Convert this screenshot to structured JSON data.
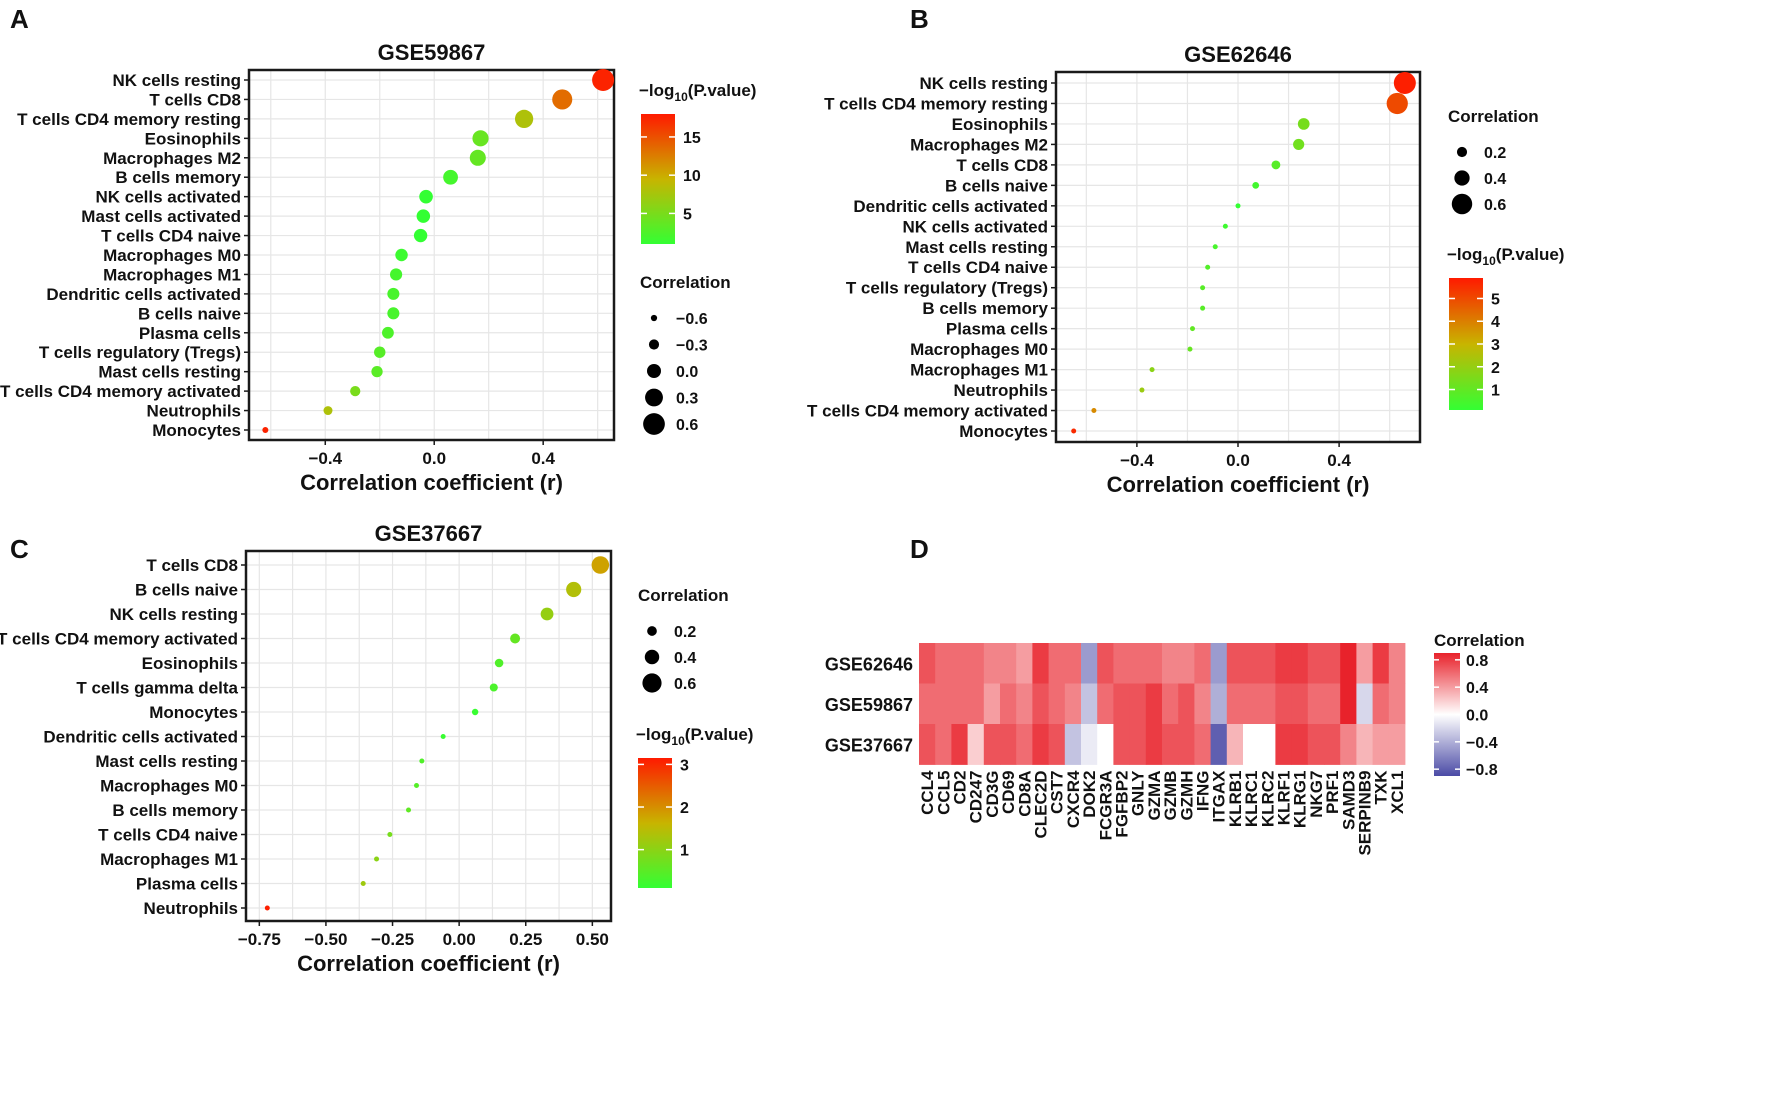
{
  "chart_data": [
    {
      "panel": "A",
      "type": "scatter",
      "title": "GSE59867",
      "xlabel": "Correlation coefficient (r)",
      "xlim": [
        -0.68,
        0.66
      ],
      "xticks": [
        -0.4,
        0.0,
        0.4
      ],
      "xtick_labels": [
        "−0.4",
        "0.0",
        "0.4"
      ],
      "categories": [
        "NK cells resting",
        "T cells CD8",
        "T cells CD4 memory resting",
        "Eosinophils",
        "Macrophages M2",
        "B cells memory",
        "NK cells activated",
        "Mast cells activated",
        "T cells CD4 naive",
        "Macrophages M0",
        "Macrophages M1",
        "Dendritic cells activated",
        "B cells naive",
        "Plasma cells",
        "T cells regulatory (Tregs)",
        "Mast cells resting",
        "T cells CD4 memory activated",
        "Neutrophils",
        "Monocytes"
      ],
      "r": [
        0.62,
        0.47,
        0.33,
        0.17,
        0.16,
        0.06,
        -0.03,
        -0.04,
        -0.05,
        -0.12,
        -0.14,
        -0.15,
        -0.15,
        -0.17,
        -0.2,
        -0.21,
        -0.29,
        -0.39,
        -0.62
      ],
      "neglog10p": [
        17.5,
        13.5,
        8,
        4,
        3.8,
        2,
        1,
        1,
        1,
        1.5,
        2,
        2.2,
        2.2,
        2.5,
        3,
        3.2,
        5,
        8,
        17.5
      ],
      "color_legend": {
        "title": "−log10(P.value)",
        "ticks": [
          5,
          10,
          15
        ],
        "tick_labels": [
          "5",
          "10",
          "15"
        ],
        "range": [
          1,
          18
        ]
      },
      "size_legend": {
        "title": "Correlation",
        "values": [
          -0.6,
          -0.3,
          0.0,
          0.3,
          0.6
        ],
        "labels": [
          "−0.6",
          "−0.3",
          "0.0",
          "0.3",
          "0.6"
        ]
      }
    },
    {
      "panel": "B",
      "type": "scatter",
      "title": "GSE62646",
      "xlabel": "Correlation coefficient (r)",
      "xlim": [
        -0.72,
        0.72
      ],
      "xticks": [
        -0.4,
        0.0,
        0.4
      ],
      "xtick_labels": [
        "−0.4",
        "0.0",
        "0.4"
      ],
      "categories": [
        "NK cells resting",
        "T cells CD4 memory resting",
        "Eosinophils",
        "Macrophages M2",
        "T cells CD8",
        "B cells naive",
        "Dendritic cells activated",
        "NK cells activated",
        "Mast cells resting",
        "T cells CD4 naive",
        "T cells regulatory (Tregs)",
        "B cells memory",
        "Plasma cells",
        "Macrophages M0",
        "Macrophages M1",
        "Neutrophils",
        "T cells CD4 memory activated",
        "Monocytes"
      ],
      "r": [
        0.66,
        0.63,
        0.26,
        0.24,
        0.15,
        0.07,
        0.0,
        -0.05,
        -0.09,
        -0.12,
        -0.14,
        -0.14,
        -0.18,
        -0.19,
        -0.34,
        -0.38,
        -0.57,
        -0.65
      ],
      "neglog10p": [
        5.8,
        5.0,
        1.4,
        1.3,
        0.8,
        0.4,
        0.1,
        0.3,
        0.5,
        0.7,
        0.8,
        0.8,
        1.0,
        1.1,
        1.8,
        2.1,
        3.8,
        5.6
      ],
      "color_legend": {
        "title": "−log10(P.value)",
        "ticks": [
          1,
          2,
          3,
          4,
          5
        ],
        "tick_labels": [
          "1",
          "2",
          "3",
          "4",
          "5"
        ],
        "range": [
          0.1,
          5.9
        ]
      },
      "size_legend": {
        "title": "Correlation",
        "values": [
          0.2,
          0.4,
          0.6
        ],
        "labels": [
          "0.2",
          "0.4",
          "0.6"
        ]
      }
    },
    {
      "panel": "C",
      "type": "scatter",
      "title": "GSE37667",
      "xlabel": "Correlation coefficient (r)",
      "xlim": [
        -0.8,
        0.57
      ],
      "xticks": [
        -0.75,
        -0.5,
        -0.25,
        0.0,
        0.25,
        0.5
      ],
      "xtick_labels": [
        "−0.75",
        "−0.50",
        "−0.25",
        "0.00",
        "0.25",
        "0.50"
      ],
      "categories": [
        "T cells CD8",
        "B cells naive",
        "NK cells resting",
        "T cells CD4 memory activated",
        "Eosinophils",
        "T cells gamma delta",
        "Monocytes",
        "Dendritic cells activated",
        "Mast cells resting",
        "Macrophages M0",
        "B cells memory",
        "T cells CD4 naive",
        "Macrophages M1",
        "Plasma cells",
        "Neutrophils"
      ],
      "r": [
        0.53,
        0.43,
        0.33,
        0.21,
        0.15,
        0.13,
        0.06,
        -0.06,
        -0.14,
        -0.16,
        -0.19,
        -0.26,
        -0.31,
        -0.36,
        -0.72
      ],
      "neglog10p": [
        1.8,
        1.4,
        1.1,
        0.6,
        0.4,
        0.35,
        0.15,
        0.15,
        0.4,
        0.45,
        0.55,
        0.8,
        1.0,
        1.2,
        3.1
      ],
      "color_legend": {
        "title": "−log10(P.value)",
        "ticks": [
          1,
          2,
          3
        ],
        "tick_labels": [
          "1",
          "2",
          "3"
        ],
        "range": [
          0.1,
          3.15
        ]
      },
      "size_legend": {
        "title": "Correlation",
        "values": [
          0.2,
          0.4,
          0.6
        ],
        "labels": [
          "0.2",
          "0.4",
          "0.6"
        ]
      }
    },
    {
      "panel": "D",
      "type": "heatmap",
      "rows": [
        "GSE62646",
        "GSE59867",
        "GSE37667"
      ],
      "columns": [
        "CCL4",
        "CCL5",
        "CD2",
        "CD247",
        "CD3G",
        "CD69",
        "CD8A",
        "CLEC2D",
        "CST7",
        "CXCR4",
        "DOK2",
        "FCGR3A",
        "FGFBP2",
        "GNLY",
        "GZMA",
        "GZMB",
        "GZMH",
        "IFNG",
        "ITGAX",
        "KLRB1",
        "KLRC1",
        "KLRC2",
        "KLRF1",
        "KLRG1",
        "NKG7",
        "PRF1",
        "SAMD3",
        "SERPINB9",
        "TXK",
        "XCL1"
      ],
      "values": [
        [
          0.7,
          0.6,
          0.6,
          0.6,
          0.5,
          0.5,
          0.4,
          0.8,
          0.6,
          0.6,
          -0.5,
          0.7,
          0.6,
          0.6,
          0.6,
          0.5,
          0.5,
          0.6,
          -0.5,
          0.7,
          0.7,
          0.7,
          0.8,
          0.8,
          0.7,
          0.7,
          0.9,
          0.4,
          0.8,
          0.5
        ],
        [
          0.6,
          0.6,
          0.6,
          0.6,
          0.4,
          0.6,
          0.5,
          0.7,
          0.6,
          0.5,
          -0.3,
          0.6,
          0.7,
          0.7,
          0.8,
          0.6,
          0.7,
          0.5,
          -0.4,
          0.6,
          0.6,
          0.6,
          0.7,
          0.7,
          0.6,
          0.6,
          0.9,
          -0.2,
          0.6,
          0.5
        ],
        [
          0.7,
          0.6,
          0.8,
          0.2,
          0.7,
          0.7,
          0.6,
          0.8,
          0.7,
          -0.3,
          -0.1,
          0.0,
          0.7,
          0.7,
          0.8,
          0.7,
          0.7,
          0.6,
          -0.8,
          0.3,
          0.0,
          0.0,
          0.8,
          0.8,
          0.7,
          0.7,
          0.5,
          0.3,
          0.4,
          0.4
        ]
      ],
      "color_legend": {
        "title": "Correlation",
        "ticks": [
          0.8,
          0.4,
          0.0,
          -0.4,
          -0.8
        ],
        "tick_labels": [
          "0.8",
          "0.4",
          "0.0",
          "−0.4",
          "−0.8"
        ],
        "range": [
          -0.9,
          0.9
        ]
      }
    }
  ],
  "colors": {
    "low_p": "#33ff33",
    "mid_p": "#c8b400",
    "high_p": "#ff1a00",
    "heat_neg": "#4b4ba6",
    "heat_zero": "#ffffff",
    "heat_pos": "#e8222b",
    "grid": "#e6e6e6"
  },
  "panel_labels": [
    "A",
    "B",
    "C",
    "D"
  ],
  "log_title_prefix": "−log",
  "log_title_sub": "10",
  "log_title_suffix": "(P.value)"
}
